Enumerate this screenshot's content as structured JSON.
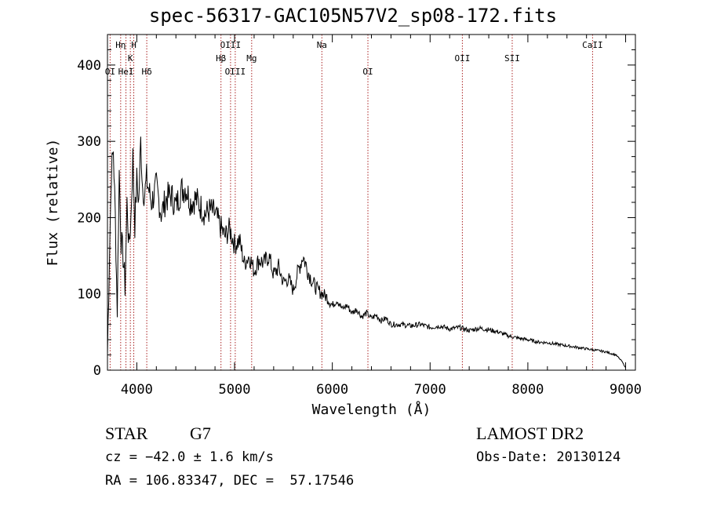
{
  "title": "spec-56317-GAC105N57V2_sp08-172.fits",
  "footer": {
    "object_class": "STAR",
    "subclass": "G7",
    "survey": "LAMOST DR2",
    "cz_line": "cz = −42.0 ± 1.6 km/s",
    "obs_date_line": "Obs-Date: 20130124",
    "radec_line": "RA = 106.83347, DEC =  57.17546"
  },
  "chart_data": {
    "type": "line",
    "title": "spec-56317-GAC105N57V2_sp08-172.fits",
    "xlabel": "Wavelength (Å)",
    "ylabel": "Flux (relative)",
    "xlim": [
      3700,
      9100
    ],
    "ylim": [
      0,
      440
    ],
    "xticks": [
      4000,
      5000,
      6000,
      7000,
      8000,
      9000
    ],
    "yticks": [
      0,
      100,
      200,
      300,
      400
    ],
    "grid": false,
    "line_color": "#000000",
    "marker_color": "#aa2222",
    "series": [
      {
        "x": [
          3700,
          3720,
          3740,
          3760,
          3780,
          3800,
          3820,
          3840,
          3860,
          3880,
          3900,
          3920,
          3940,
          3960,
          3980,
          4000,
          4020,
          4040,
          4060,
          4080,
          4100,
          4150,
          4200,
          4250,
          4300,
          4350,
          4400,
          4450,
          4500,
          4550,
          4600,
          4650,
          4700,
          4750,
          4800,
          4850,
          4900,
          4950,
          5000,
          5050,
          5100,
          5150,
          5200,
          5250,
          5300,
          5350,
          5400,
          5450,
          5500,
          5550,
          5600,
          5650,
          5700,
          5750,
          5800,
          5850,
          5900,
          5950,
          6000,
          6050,
          6100,
          6150,
          6200,
          6250,
          6300,
          6350,
          6400,
          6450,
          6500,
          6550,
          6600,
          6700,
          6800,
          6900,
          7000,
          7100,
          7200,
          7300,
          7400,
          7500,
          7600,
          7700,
          7800,
          7900,
          8000,
          8100,
          8200,
          8300,
          8400,
          8500,
          8600,
          8700,
          8800,
          8900,
          8960,
          9000
        ],
        "y": [
          20,
          150,
          260,
          290,
          200,
          80,
          260,
          170,
          150,
          110,
          220,
          160,
          200,
          280,
          190,
          250,
          220,
          300,
          240,
          230,
          250,
          220,
          240,
          205,
          225,
          230,
          215,
          235,
          240,
          220,
          225,
          215,
          205,
          210,
          205,
          190,
          175,
          185,
          165,
          170,
          140,
          150,
          130,
          145,
          140,
          150,
          125,
          135,
          115,
          120,
          105,
          130,
          150,
          130,
          115,
          105,
          100,
          95,
          85,
          92,
          80,
          85,
          75,
          80,
          70,
          75,
          68,
          72,
          65,
          68,
          60,
          60,
          58,
          60,
          56,
          58,
          54,
          56,
          52,
          55,
          53,
          50,
          45,
          42,
          40,
          37,
          36,
          34,
          32,
          30,
          28,
          26,
          24,
          20,
          12,
          3
        ]
      }
    ],
    "lines": [
      {
        "label": "Hη",
        "wave": 3835,
        "row": 1
      },
      {
        "label": "H",
        "wave": 3969,
        "row": 1
      },
      {
        "label": "K",
        "wave": 3934,
        "row": 2
      },
      {
        "label": "OI",
        "wave": 3727,
        "row": 3
      },
      {
        "label": "HeI",
        "wave": 3889,
        "row": 3
      },
      {
        "label": "Hδ",
        "wave": 4102,
        "row": 3
      },
      {
        "label": "OIII",
        "wave": 4959,
        "row": 1
      },
      {
        "label": "Hβ",
        "wave": 4861,
        "row": 2
      },
      {
        "label": "Mg",
        "wave": 5175,
        "row": 2
      },
      {
        "label": "OIII",
        "wave": 5007,
        "row": 3
      },
      {
        "label": "Na",
        "wave": 5893,
        "row": 1
      },
      {
        "label": "OI",
        "wave": 6364,
        "row": 3
      },
      {
        "label": "OII",
        "wave": 7330,
        "row": 2
      },
      {
        "label": "SII",
        "wave": 7840,
        "row": 2
      },
      {
        "label": "CaII",
        "wave": 8662,
        "row": 1
      }
    ]
  }
}
